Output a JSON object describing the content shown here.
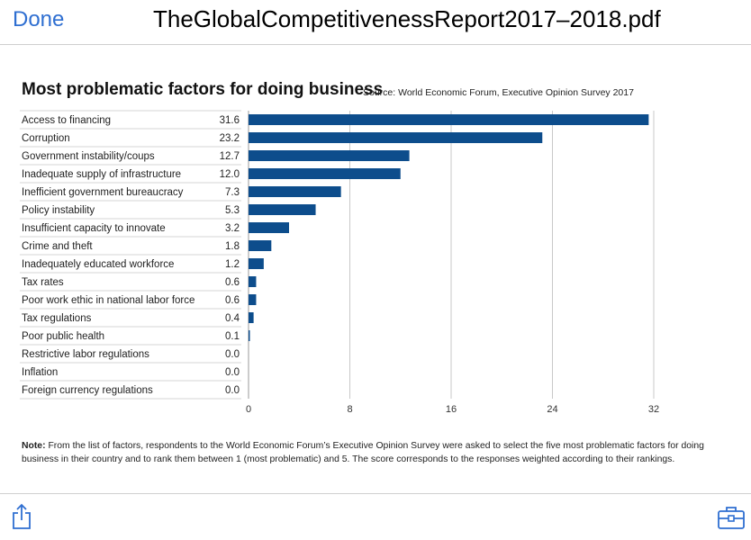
{
  "header": {
    "done_label": "Done",
    "title": "TheGlobalCompetitivenessReport2017–2018.pdf"
  },
  "footer": {
    "share_icon": "share-icon",
    "toolbox_icon": "toolbox-icon"
  },
  "colors": {
    "accent": "#2f6fd1",
    "bar": "#0d4d8c"
  },
  "chart_data": {
    "type": "bar",
    "orientation": "horizontal",
    "title": "Most problematic factors for doing business",
    "source": "Source: World Economic Forum, Executive Opinion Survey 2017",
    "categories": [
      "Access to financing",
      "Corruption",
      "Government instability/coups",
      "Inadequate supply of infrastructure",
      "Inefficient government bureaucracy",
      "Policy instability",
      "Insufficient capacity to innovate",
      "Crime and theft",
      "Inadequately educated workforce",
      "Tax rates",
      "Poor work ethic in national labor force",
      "Tax regulations",
      "Poor public health",
      "Restrictive labor regulations",
      "Inflation",
      "Foreign currency regulations"
    ],
    "values": [
      31.6,
      23.2,
      12.7,
      12.0,
      7.3,
      5.3,
      3.2,
      1.8,
      1.2,
      0.6,
      0.6,
      0.4,
      0.1,
      0.0,
      0.0,
      0.0
    ],
    "value_labels": [
      "31.6",
      "23.2",
      "12.7",
      "12.0",
      "7.3",
      "5.3",
      "3.2",
      "1.8",
      "1.2",
      "0.6",
      "0.6",
      "0.4",
      "0.1",
      "0.0",
      "0.0",
      "0.0"
    ],
    "xticks": [
      "0",
      "8",
      "16",
      "24",
      "32"
    ],
    "xlim": [
      0,
      32
    ],
    "grid": true,
    "note_label": "Note:",
    "note": " From the list of factors, respondents to the World Economic Forum’s Executive Opinion Survey were asked to select the five most problematic factors for doing business in their country and to rank them between 1 (most problematic) and 5. The score corresponds to the responses weighted according to their rankings."
  }
}
